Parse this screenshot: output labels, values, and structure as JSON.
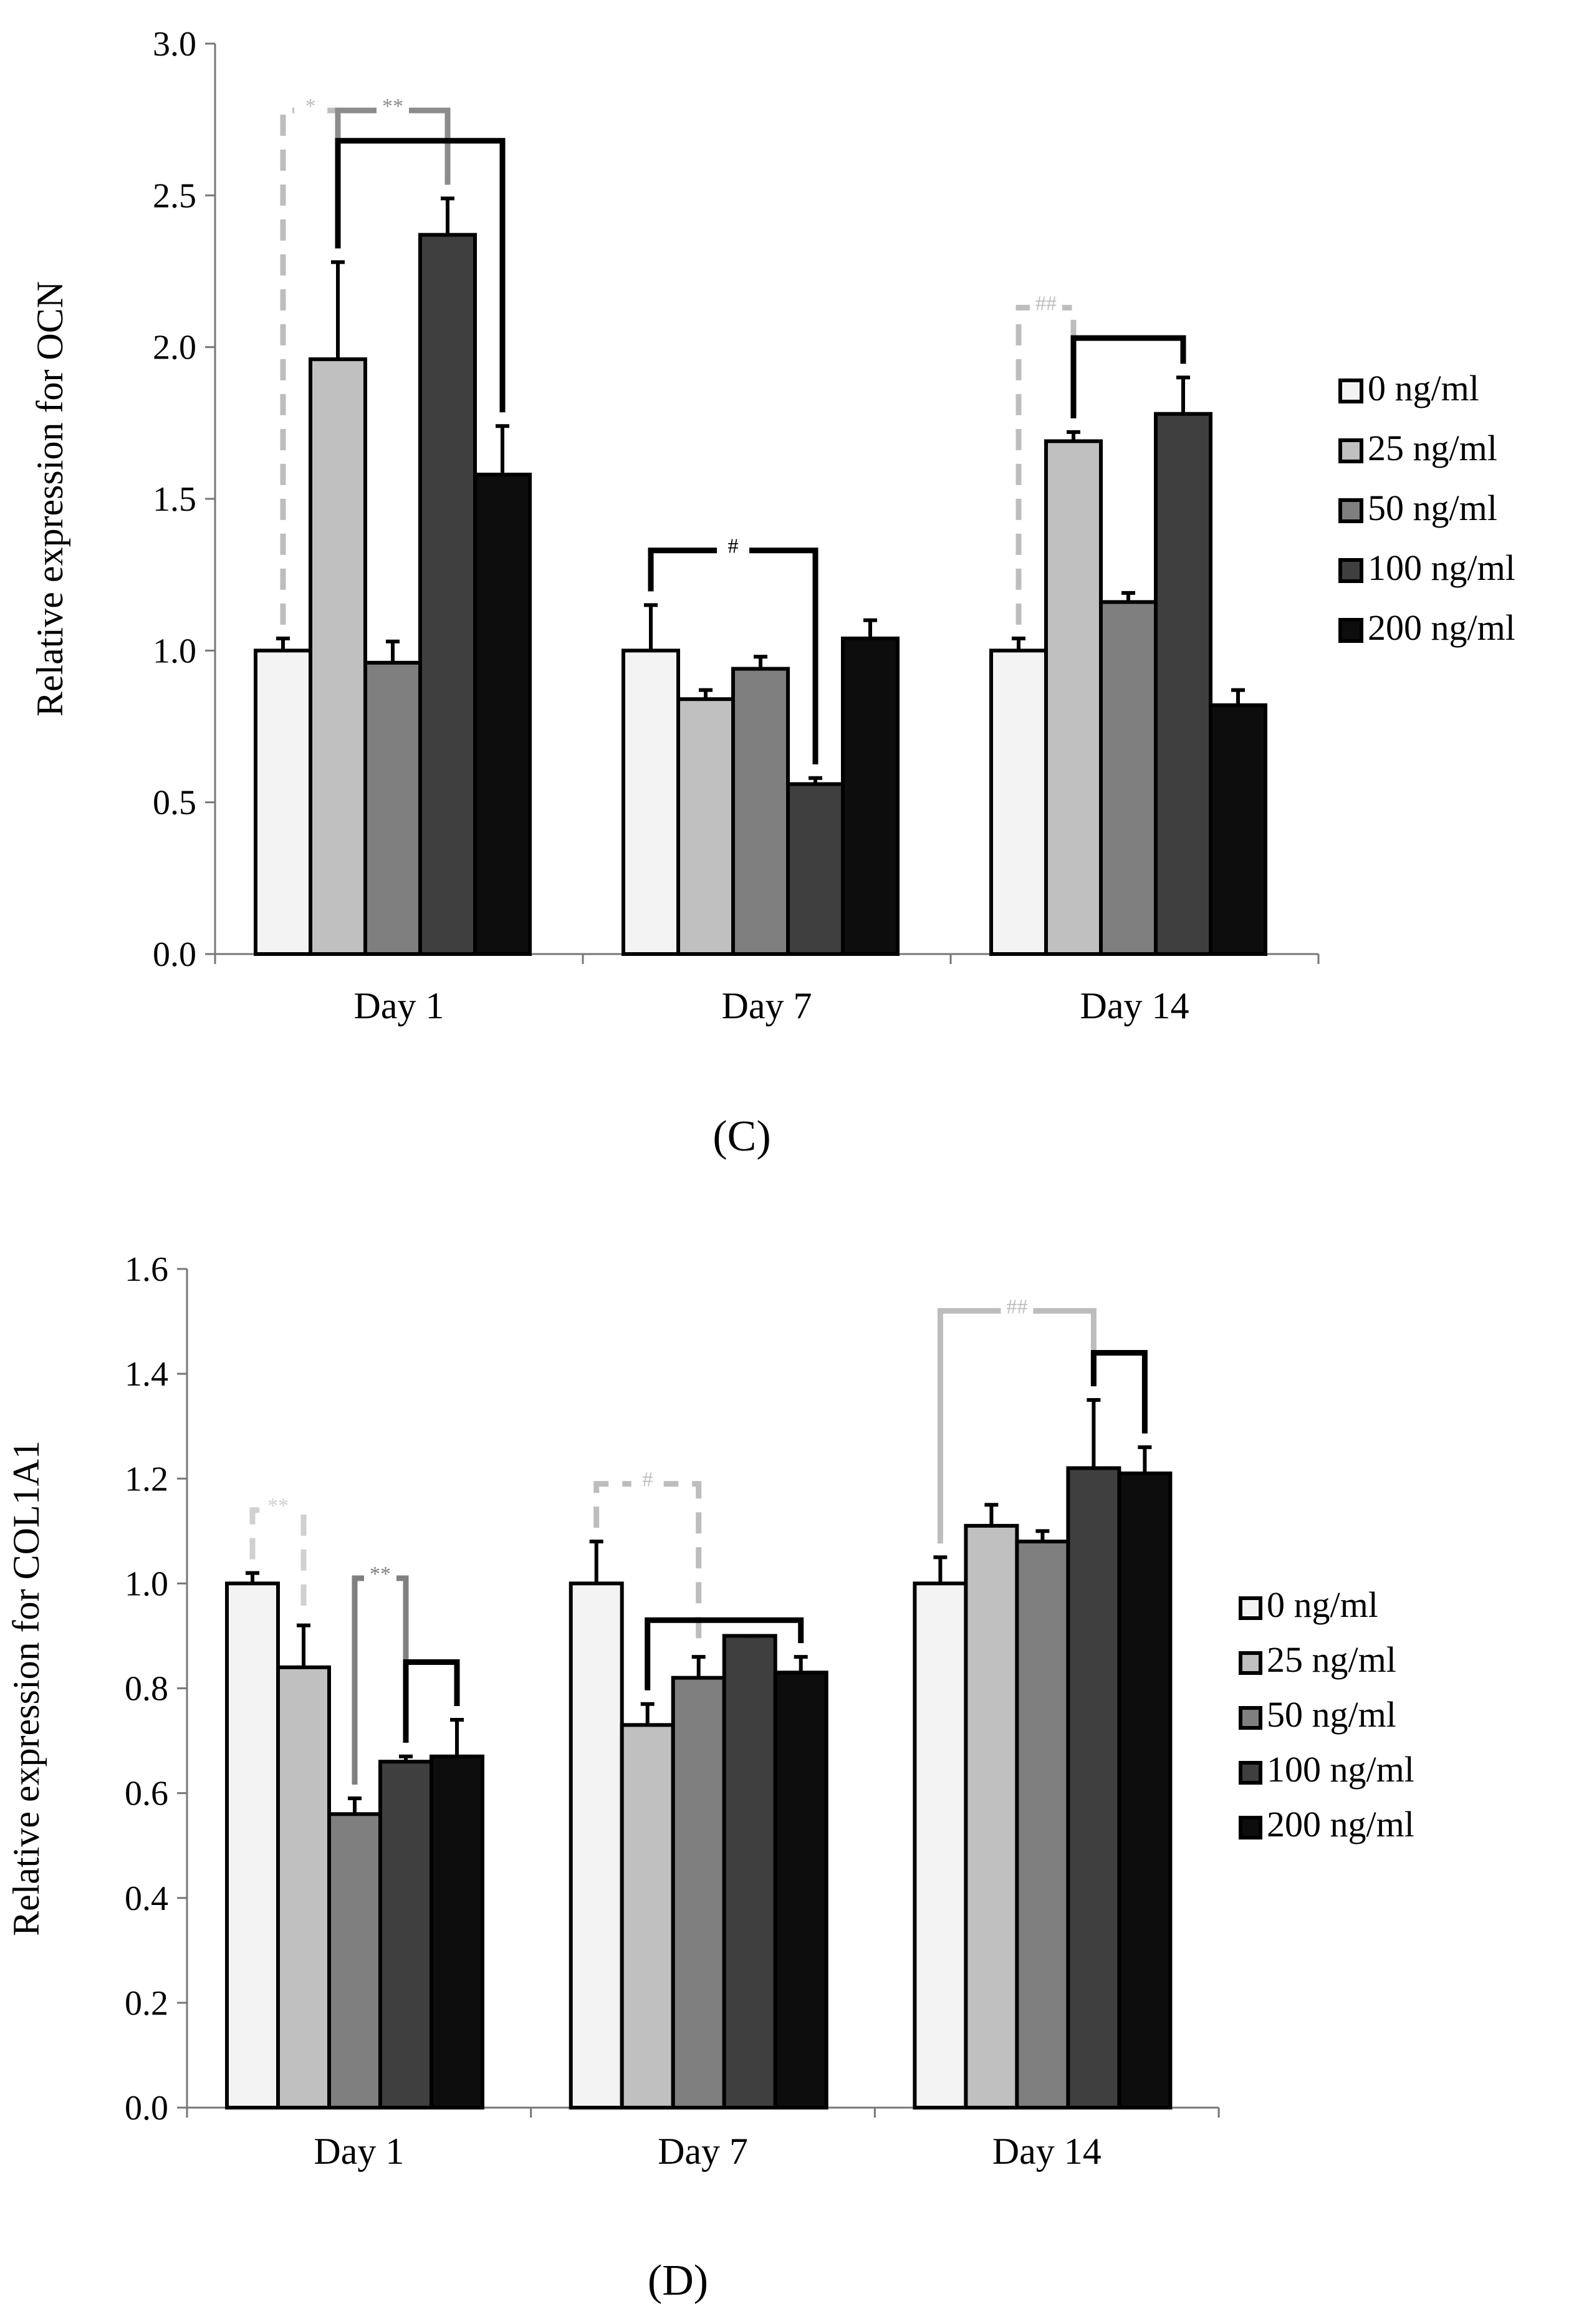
{
  "series_styles": [
    {
      "fill": "#f2f3f2"
    },
    {
      "fill": "#c0c0c0"
    },
    {
      "fill": "#7f7f7f"
    },
    {
      "fill": "#3f3f3f"
    },
    {
      "fill": "#0d0d0d"
    }
  ],
  "chart_data": [
    {
      "type": "bar",
      "panel_label": "(C)",
      "ylabel": "Relative expression for OCN",
      "xlabel": "",
      "categories": [
        "Day 1",
        "Day 7",
        "Day 14"
      ],
      "ylim": [
        0,
        3.0
      ],
      "yticks": [
        "0.0",
        "0.5",
        "1.0",
        "1.5",
        "2.0",
        "2.5",
        "3.0"
      ],
      "grid": false,
      "legend_position": "right",
      "series": [
        {
          "name": "0 ng/ml",
          "values": [
            1.0,
            1.0,
            1.0
          ],
          "errors": [
            0.04,
            0.15,
            0.04
          ]
        },
        {
          "name": "25 ng/ml",
          "values": [
            1.96,
            0.84,
            1.69
          ],
          "errors": [
            0.32,
            0.03,
            0.03
          ]
        },
        {
          "name": "50 ng/ml",
          "values": [
            0.96,
            0.94,
            1.16
          ],
          "errors": [
            0.07,
            0.04,
            0.03
          ]
        },
        {
          "name": "100 ng/ml",
          "values": [
            2.37,
            0.56,
            1.78
          ],
          "errors": [
            0.12,
            0.02,
            0.12
          ]
        },
        {
          "name": "200 ng/ml",
          "values": [
            1.58,
            1.04,
            0.82
          ],
          "errors": [
            0.16,
            0.06,
            0.05
          ]
        }
      ],
      "significance": [
        {
          "label": "*",
          "color": "#bdbdbd",
          "dashed": true,
          "from": [
            0,
            0
          ],
          "to": [
            0,
            1
          ],
          "y": 2.78
        },
        {
          "label": "**",
          "color": "#8c8c8c",
          "dashed": false,
          "from": [
            0,
            1
          ],
          "to": [
            0,
            3
          ],
          "y": 2.78
        },
        {
          "label": "",
          "color": "#000000",
          "dashed": false,
          "from": [
            0,
            1
          ],
          "to": [
            0,
            4
          ],
          "y": 2.68
        },
        {
          "label": "#",
          "color": "#000000",
          "dashed": false,
          "from": [
            1,
            0
          ],
          "to": [
            1,
            3
          ],
          "y": 1.33
        },
        {
          "label": "##",
          "color": "#bdbdbd",
          "dashed": true,
          "from": [
            2,
            0
          ],
          "to": [
            2,
            1
          ],
          "y": 2.13
        },
        {
          "label": "",
          "color": "#000000",
          "dashed": false,
          "from": [
            2,
            1
          ],
          "to": [
            2,
            3
          ],
          "y": 2.03
        }
      ]
    },
    {
      "type": "bar",
      "panel_label": "(D)",
      "ylabel": "Relative expression for COL1A1",
      "xlabel": "",
      "categories": [
        "Day 1",
        "Day 7",
        "Day 14"
      ],
      "ylim": [
        0,
        1.6
      ],
      "yticks": [
        "0.0",
        "0.2",
        "0.4",
        "0.6",
        "0.8",
        "1.0",
        "1.2",
        "1.4",
        "1.6"
      ],
      "grid": false,
      "legend_position": "right",
      "series": [
        {
          "name": "0 ng/ml",
          "values": [
            1.0,
            1.0,
            1.0
          ],
          "errors": [
            0.02,
            0.08,
            0.05
          ]
        },
        {
          "name": "25 ng/ml",
          "values": [
            0.84,
            0.73,
            1.11
          ],
          "errors": [
            0.08,
            0.04,
            0.04
          ]
        },
        {
          "name": "50 ng/ml",
          "values": [
            0.56,
            0.82,
            1.08
          ],
          "errors": [
            0.03,
            0.04,
            0.02
          ]
        },
        {
          "name": "100 ng/ml",
          "values": [
            0.66,
            0.9,
            1.22
          ],
          "errors": [
            0.01,
            0.0,
            0.13
          ]
        },
        {
          "name": "200 ng/ml",
          "values": [
            0.67,
            0.83,
            1.21
          ],
          "errors": [
            0.07,
            0.03,
            0.05
          ]
        }
      ],
      "significance": [
        {
          "label": "**",
          "color": "#d0d0d0",
          "dashed": true,
          "from": [
            0,
            0
          ],
          "to": [
            0,
            1
          ],
          "y": 1.14
        },
        {
          "label": "**",
          "color": "#808080",
          "dashed": false,
          "from": [
            0,
            2
          ],
          "to": [
            0,
            3
          ],
          "y": 1.01
        },
        {
          "label": "",
          "color": "#000000",
          "dashed": false,
          "from": [
            0,
            3
          ],
          "to": [
            0,
            4
          ],
          "y": 0.85
        },
        {
          "label": "#",
          "color": "#bdbdbd",
          "dashed": true,
          "from": [
            1,
            0
          ],
          "to": [
            1,
            2
          ],
          "y": 1.19
        },
        {
          "label": "",
          "color": "#000000",
          "dashed": false,
          "from": [
            1,
            1
          ],
          "to": [
            1,
            4
          ],
          "y": 0.93
        },
        {
          "label": "##",
          "color": "#bdbdbd",
          "dashed": false,
          "from": [
            2,
            0
          ],
          "to": [
            2,
            3
          ],
          "y": 1.52
        },
        {
          "label": "",
          "color": "#000000",
          "dashed": false,
          "from": [
            2,
            3
          ],
          "to": [
            2,
            4
          ],
          "y": 1.44
        }
      ]
    }
  ]
}
